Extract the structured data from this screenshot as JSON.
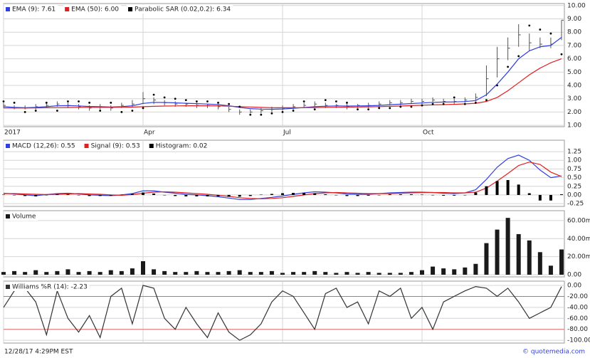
{
  "chart_data": [
    {
      "type": "ohlc",
      "categories": [
        "2017",
        null,
        null,
        null,
        null,
        null,
        null,
        null,
        null,
        null,
        null,
        null,
        null,
        "Apr",
        null,
        null,
        null,
        null,
        null,
        null,
        null,
        null,
        null,
        null,
        null,
        null,
        "Jul",
        null,
        null,
        null,
        null,
        null,
        null,
        null,
        null,
        null,
        null,
        null,
        null,
        "Oct",
        null,
        null,
        null,
        null,
        null,
        null,
        null,
        null,
        null,
        null,
        null,
        null,
        null
      ],
      "high": [
        2.7,
        2.5,
        2.5,
        2.6,
        2.7,
        2.8,
        2.7,
        2.6,
        2.5,
        2.6,
        2.5,
        2.7,
        2.9,
        3.5,
        3.1,
        2.9,
        2.8,
        2.7,
        2.7,
        2.6,
        2.6,
        2.4,
        2.2,
        2.2,
        2.3,
        2.4,
        2.5,
        2.6,
        2.7,
        2.8,
        2.7,
        2.6,
        2.6,
        2.6,
        2.7,
        2.8,
        2.9,
        2.9,
        3.0,
        3.0,
        3.1,
        3.0,
        3.0,
        3.1,
        3.4,
        5.5,
        6.9,
        7.6,
        8.6,
        7.9,
        7.6,
        7.6,
        8.9
      ],
      "low": [
        2.3,
        2.2,
        2.2,
        2.2,
        2.3,
        2.4,
        2.3,
        2.2,
        2.1,
        2.2,
        2.1,
        2.3,
        2.4,
        2.6,
        2.6,
        2.5,
        2.4,
        2.4,
        2.3,
        2.3,
        2.2,
        2.0,
        1.8,
        1.9,
        1.9,
        2.0,
        2.1,
        2.2,
        2.3,
        2.4,
        2.3,
        2.3,
        2.2,
        2.3,
        2.3,
        2.4,
        2.5,
        2.5,
        2.6,
        2.6,
        2.7,
        2.6,
        2.6,
        2.7,
        2.8,
        3.2,
        4.6,
        5.9,
        6.9,
        6.6,
        6.8,
        6.8,
        7.4
      ],
      "close": [
        2.5,
        2.3,
        2.3,
        2.4,
        2.5,
        2.6,
        2.5,
        2.4,
        2.3,
        2.4,
        2.3,
        2.5,
        2.6,
        3.0,
        2.9,
        2.7,
        2.6,
        2.6,
        2.5,
        2.5,
        2.4,
        2.2,
        2.0,
        2.0,
        2.1,
        2.2,
        2.3,
        2.4,
        2.5,
        2.6,
        2.5,
        2.5,
        2.4,
        2.5,
        2.5,
        2.6,
        2.7,
        2.7,
        2.8,
        2.8,
        2.9,
        2.8,
        2.8,
        2.9,
        3.1,
        4.5,
        6.0,
        6.8,
        7.8,
        7.2,
        7.1,
        7.1,
        8.9
      ],
      "bar_color": "#555555",
      "series": [
        {
          "name": "EMA (9): 7.61",
          "color": "#2f3fe0",
          "values": [
            2.4,
            2.35,
            2.33,
            2.35,
            2.4,
            2.47,
            2.48,
            2.46,
            2.42,
            2.41,
            2.38,
            2.41,
            2.47,
            2.65,
            2.73,
            2.72,
            2.69,
            2.66,
            2.63,
            2.6,
            2.56,
            2.47,
            2.35,
            2.26,
            2.22,
            2.21,
            2.23,
            2.28,
            2.34,
            2.41,
            2.44,
            2.46,
            2.45,
            2.46,
            2.47,
            2.5,
            2.55,
            2.59,
            2.64,
            2.68,
            2.73,
            2.75,
            2.76,
            2.79,
            2.86,
            3.3,
            4.1,
            5.0,
            6.0,
            6.6,
            6.9,
            7.0,
            7.61
          ]
        },
        {
          "name": "EMA (50): 6.00",
          "color": "#e02020",
          "values": [
            2.3,
            2.3,
            2.3,
            2.31,
            2.32,
            2.33,
            2.34,
            2.35,
            2.35,
            2.35,
            2.35,
            2.36,
            2.37,
            2.4,
            2.43,
            2.45,
            2.46,
            2.47,
            2.47,
            2.47,
            2.46,
            2.44,
            2.41,
            2.38,
            2.35,
            2.33,
            2.32,
            2.32,
            2.33,
            2.34,
            2.35,
            2.36,
            2.37,
            2.38,
            2.39,
            2.41,
            2.43,
            2.45,
            2.48,
            2.51,
            2.54,
            2.56,
            2.58,
            2.61,
            2.66,
            2.8,
            3.1,
            3.6,
            4.2,
            4.8,
            5.3,
            5.7,
            6.0
          ]
        },
        {
          "name": "Parabolic SAR (0.02,0.2): 6.34",
          "color": "#000000",
          "style": "dots",
          "values": [
            2.8,
            2.7,
            2.0,
            2.1,
            2.7,
            2.1,
            2.8,
            2.8,
            2.7,
            2.1,
            2.7,
            2.0,
            2.1,
            2.3,
            3.3,
            3.1,
            3.0,
            2.9,
            2.8,
            2.8,
            2.7,
            2.6,
            2.4,
            1.8,
            1.8,
            1.9,
            2.0,
            2.1,
            2.8,
            2.2,
            2.9,
            2.8,
            2.7,
            2.2,
            2.2,
            2.3,
            2.3,
            2.4,
            2.4,
            2.5,
            2.6,
            2.6,
            3.1,
            2.6,
            2.7,
            2.9,
            4.0,
            5.4,
            6.2,
            8.5,
            8.2,
            7.9,
            6.34
          ]
        }
      ],
      "ylim": [
        0.9,
        10.15
      ],
      "yticks": [
        {
          "value": 1,
          "label": "1.00"
        },
        {
          "value": 2,
          "label": "2.00"
        },
        {
          "value": 3,
          "label": "3.00"
        },
        {
          "value": 4,
          "label": "4.00"
        },
        {
          "value": 5,
          "label": "5.00"
        },
        {
          "value": 6,
          "label": "6.00"
        },
        {
          "value": 7,
          "label": "7.00"
        },
        {
          "value": 8,
          "label": "8.00"
        },
        {
          "value": 9,
          "label": "9.00"
        },
        {
          "value": 10,
          "label": "10.00"
        }
      ],
      "grid": true
    },
    {
      "type": "line",
      "series": [
        {
          "name": "MACD (12,26): 0.55",
          "color": "#2f3fe0",
          "values": [
            0.05,
            0.03,
            0.0,
            -0.02,
            0.01,
            0.04,
            0.05,
            0.03,
            0.0,
            -0.01,
            -0.02,
            0.0,
            0.04,
            0.12,
            0.12,
            0.08,
            0.05,
            0.02,
            0.0,
            -0.02,
            -0.05,
            -0.09,
            -0.13,
            -0.13,
            -0.1,
            -0.07,
            -0.03,
            0.02,
            0.06,
            0.09,
            0.08,
            0.06,
            0.03,
            0.02,
            0.02,
            0.04,
            0.06,
            0.07,
            0.08,
            0.08,
            0.07,
            0.05,
            0.04,
            0.06,
            0.15,
            0.45,
            0.8,
            1.05,
            1.15,
            1.0,
            0.72,
            0.5,
            0.55
          ]
        },
        {
          "name": "Signal (9): 0.53",
          "color": "#e02020",
          "values": [
            0.04,
            0.04,
            0.03,
            0.02,
            0.01,
            0.02,
            0.03,
            0.04,
            0.03,
            0.02,
            0.0,
            -0.01,
            0.01,
            0.05,
            0.08,
            0.09,
            0.08,
            0.06,
            0.04,
            0.02,
            -0.01,
            -0.04,
            -0.08,
            -0.1,
            -0.11,
            -0.1,
            -0.08,
            -0.04,
            0.0,
            0.04,
            0.06,
            0.07,
            0.06,
            0.05,
            0.04,
            0.04,
            0.04,
            0.05,
            0.06,
            0.07,
            0.07,
            0.07,
            0.06,
            0.06,
            0.08,
            0.2,
            0.4,
            0.62,
            0.85,
            0.95,
            0.88,
            0.66,
            0.53
          ]
        },
        {
          "name": "Histogram: 0.02",
          "color": "#000000",
          "style": "bars",
          "values": [
            0.01,
            -0.01,
            -0.03,
            -0.04,
            0.0,
            0.02,
            0.02,
            -0.01,
            -0.03,
            -0.03,
            -0.02,
            0.01,
            0.03,
            0.07,
            0.04,
            -0.01,
            -0.03,
            -0.04,
            -0.04,
            -0.04,
            -0.04,
            -0.05,
            -0.05,
            -0.03,
            0.01,
            0.03,
            0.05,
            0.06,
            0.06,
            0.05,
            0.02,
            -0.01,
            -0.03,
            -0.03,
            -0.02,
            0.0,
            0.02,
            0.02,
            0.02,
            0.01,
            0.0,
            -0.02,
            -0.02,
            0.0,
            0.07,
            0.25,
            0.4,
            0.43,
            0.3,
            0.05,
            -0.16,
            -0.16,
            0.02
          ]
        }
      ],
      "ylim": [
        -0.33,
        1.58
      ],
      "yticks": [
        {
          "value": -0.25,
          "label": "-0.25"
        },
        {
          "value": 0,
          "label": "0.00"
        },
        {
          "value": 0.25,
          "label": "0.25"
        },
        {
          "value": 0.5,
          "label": "0.50"
        },
        {
          "value": 0.75,
          "label": "0.75"
        },
        {
          "value": 1,
          "label": "1.00"
        },
        {
          "value": 1.25,
          "label": "1.25"
        }
      ],
      "grid": true
    },
    {
      "type": "bar",
      "title": "Volume",
      "color": "#1a1a1a",
      "values": [
        3,
        4,
        3,
        5,
        3,
        4,
        6,
        3,
        4,
        3,
        5,
        4,
        7,
        15,
        6,
        4,
        3,
        3,
        4,
        3,
        3,
        4,
        5,
        3,
        3,
        4,
        2,
        3,
        3,
        4,
        3,
        2,
        3,
        2,
        3,
        2,
        2,
        2,
        3,
        5,
        9,
        7,
        6,
        8,
        12,
        35,
        50,
        63,
        45,
        38,
        25,
        10,
        28
      ],
      "ylim": [
        -2.4,
        71
      ],
      "yticks": [
        {
          "value": 0,
          "label": "0.00"
        },
        {
          "value": 20,
          "label": "20.00m"
        },
        {
          "value": 40,
          "label": "40.00m"
        },
        {
          "value": 60,
          "label": "60.00m"
        }
      ],
      "grid": true
    },
    {
      "type": "line",
      "series": [
        {
          "name": "Williams %R (14): -2.23",
          "color": "#333333",
          "values": [
            -40,
            -10,
            -5,
            -30,
            -90,
            -10,
            -60,
            -85,
            -55,
            -95,
            -20,
            -5,
            -70,
            0,
            -5,
            -60,
            -80,
            -40,
            -70,
            -95,
            -50,
            -85,
            -100,
            -90,
            -70,
            -30,
            -10,
            -20,
            -50,
            -80,
            -15,
            -5,
            -40,
            -30,
            -70,
            -10,
            -20,
            -5,
            -60,
            -40,
            -80,
            -30,
            -20,
            -10,
            -2,
            -5,
            -20,
            -5,
            -30,
            -60,
            -50,
            -40,
            -2.23
          ]
        }
      ],
      "levels": [
        {
          "value": -20,
          "color": "#888888"
        },
        {
          "value": -80,
          "color": "#e07070"
        }
      ],
      "ylim": [
        -105,
        7.8
      ],
      "yticks": [
        {
          "value": -100,
          "label": "-100.00"
        },
        {
          "value": -80,
          "label": "-80.00"
        },
        {
          "value": -60,
          "label": "-60.00"
        },
        {
          "value": -40,
          "label": "-40.00"
        },
        {
          "value": -20,
          "label": "-20.00"
        },
        {
          "value": 0,
          "label": "0.00"
        }
      ],
      "grid": true
    }
  ],
  "footer": {
    "timestamp": "12/28/17 4:29PM EST",
    "source": "© quotemedia.com"
  }
}
